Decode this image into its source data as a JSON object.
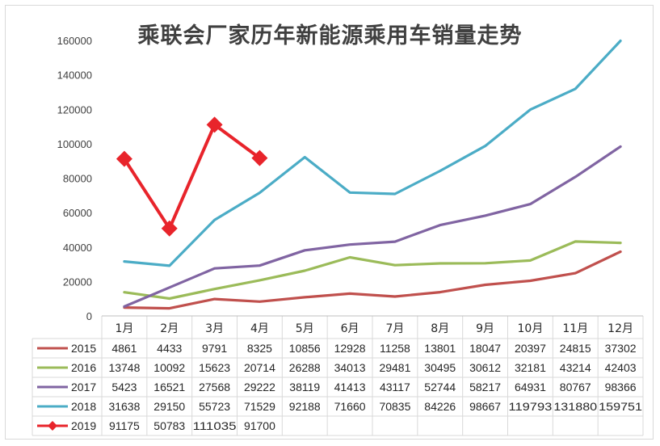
{
  "chart_data": {
    "type": "line",
    "title": "乘联会厂家历年新能源乘用车销量走势",
    "categories": [
      "1月",
      "2月",
      "3月",
      "4月",
      "5月",
      "6月",
      "7月",
      "8月",
      "9月",
      "10月",
      "11月",
      "12月"
    ],
    "ylim": [
      0,
      160000
    ],
    "yticks": [
      0,
      20000,
      40000,
      60000,
      80000,
      100000,
      120000,
      140000,
      160000
    ],
    "grid": false,
    "legend": "data-table",
    "series": [
      {
        "name": "2015",
        "color": "#c0504d",
        "marker": "none",
        "values": [
          4861,
          4433,
          9791,
          8325,
          10856,
          12928,
          11258,
          13801,
          18047,
          20397,
          24815,
          37302
        ],
        "labels": [
          "4861",
          "4433",
          "9791",
          "8325",
          "10856",
          "12928",
          "11258",
          "13801",
          "18047",
          "20397",
          "24815",
          "37302"
        ]
      },
      {
        "name": "2016",
        "color": "#9bbb59",
        "marker": "none",
        "values": [
          13748,
          10092,
          15623,
          20714,
          26288,
          34013,
          29481,
          30495,
          30612,
          32181,
          43214,
          42403
        ],
        "labels": [
          "13748",
          "10092",
          "15623",
          "20714",
          "26288",
          "34013",
          "29481",
          "30495",
          "30612",
          "32181",
          "43214",
          "42403"
        ]
      },
      {
        "name": "2017",
        "color": "#8064a2",
        "marker": "none",
        "values": [
          5423,
          16521,
          27568,
          29222,
          38119,
          41413,
          43117,
          52744,
          58217,
          64931,
          80767,
          98366
        ],
        "labels": [
          "5423",
          "16521",
          "27568",
          "29222",
          "38119",
          "41413",
          "43117",
          "52744",
          "58217",
          "64931",
          "80767",
          "98366"
        ]
      },
      {
        "name": "2018",
        "color": "#4bacc6",
        "marker": "none",
        "values": [
          31638,
          29150,
          55723,
          71529,
          92188,
          71660,
          70835,
          84226,
          98667,
          119793,
          131880,
          159751
        ],
        "labels": [
          "31638",
          "29150",
          "55723",
          "71529",
          "92188",
          "71660",
          "70835",
          "84226",
          "98667",
          "119793",
          "131880",
          "159751"
        ]
      },
      {
        "name": "2019",
        "color": "#e8242b",
        "marker": "diamond",
        "values": [
          91175,
          50783,
          111035,
          91700,
          null,
          null,
          null,
          null,
          null,
          null,
          null,
          null
        ],
        "labels": [
          "91175",
          "50783",
          "111035",
          "91700",
          "",
          "",
          "",
          "",
          "",
          "",
          "",
          ""
        ]
      }
    ]
  }
}
